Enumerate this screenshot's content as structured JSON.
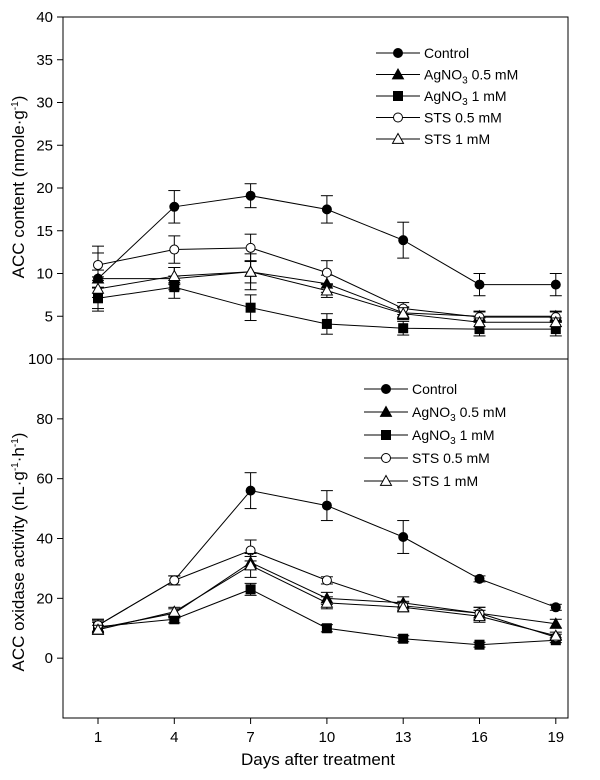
{
  "chart_data": [
    {
      "type": "line",
      "panel": "top",
      "ylabel": "ACC content (nmole·g-1)",
      "ylabel_parts": {
        "main": "ACC content (nmole·g",
        "sup": "-1",
        "end": ")"
      },
      "ylim": [
        0,
        40
      ],
      "yticks": [
        5,
        10,
        15,
        20,
        25,
        30,
        35,
        40
      ],
      "xlim": [
        1,
        19
      ],
      "grid": false,
      "legend_position": "top-right",
      "series": [
        {
          "name": "Control",
          "marker": "filled-circle",
          "x": [
            1,
            4,
            7,
            10,
            13,
            16,
            19
          ],
          "values": [
            9.4,
            17.8,
            19.1,
            17.5,
            13.9,
            8.7,
            8.7
          ],
          "err": [
            3.8,
            1.9,
            1.4,
            1.6,
            2.1,
            1.3,
            1.3
          ]
        },
        {
          "name": "AgNO3 0.5 mM",
          "name_parts": {
            "main": "AgNO",
            "sub": "3",
            "end": " 0.5 mM"
          },
          "marker": "filled-triangle",
          "x": [
            1,
            4,
            7,
            10,
            13,
            16,
            19
          ],
          "values": [
            9.4,
            9.4,
            10.2,
            8.8,
            5.4,
            5.0,
            5.0
          ],
          "err": [
            1.0,
            1.3,
            1.3,
            1.0,
            0.7,
            0.6,
            0.6
          ]
        },
        {
          "name": "AgNO3 1 mM",
          "name_parts": {
            "main": "AgNO",
            "sub": "3",
            "end": " 1 mM"
          },
          "marker": "filled-square",
          "x": [
            1,
            4,
            7,
            10,
            13,
            16,
            19
          ],
          "values": [
            7.1,
            8.4,
            6.0,
            4.1,
            3.6,
            3.5,
            3.5
          ],
          "err": [
            1.2,
            1.3,
            1.5,
            1.2,
            0.8,
            0.8,
            0.8
          ]
        },
        {
          "name": "STS 0.5 mM",
          "marker": "open-circle",
          "x": [
            1,
            4,
            7,
            10,
            13,
            16,
            19
          ],
          "values": [
            11.0,
            12.8,
            13.0,
            10.1,
            5.9,
            4.9,
            4.9
          ],
          "err": [
            1.4,
            1.6,
            1.6,
            1.4,
            0.7,
            0.6,
            0.6
          ]
        },
        {
          "name": "STS 1 mM",
          "marker": "open-triangle",
          "x": [
            1,
            4,
            7,
            10,
            13,
            16,
            19
          ],
          "values": [
            8.2,
            9.7,
            10.2,
            8.0,
            5.3,
            4.3,
            4.3
          ],
          "err": [
            1.0,
            1.0,
            2.1,
            0.8,
            0.7,
            0.5,
            0.5
          ]
        }
      ]
    },
    {
      "type": "line",
      "panel": "bottom",
      "ylabel": "ACC oxidase activity (nL·g-1·h-1)",
      "ylabel_parts": {
        "main": "ACC oxidase activity (nL·g",
        "sup1": "-1",
        "mid": "·h",
        "sup2": "-1",
        "end": ")"
      },
      "xlabel": "Days after treatment",
      "xticks": [
        1,
        4,
        7,
        10,
        13,
        16,
        19
      ],
      "ylim": [
        -20,
        100
      ],
      "yticks": [
        0,
        20,
        40,
        60,
        80,
        100
      ],
      "xlim": [
        1,
        19
      ],
      "grid": false,
      "legend_position": "top-right",
      "series": [
        {
          "name": "Control",
          "marker": "filled-circle",
          "x": [
            1,
            4,
            7,
            10,
            13,
            16,
            19
          ],
          "values": [
            11,
            26,
            56,
            51,
            40.5,
            26.5,
            17
          ],
          "err": [
            2,
            1.5,
            6,
            5,
            5.5,
            1,
            1
          ]
        },
        {
          "name": "AgNO3 0.5 mM",
          "name_parts": {
            "main": "AgNO",
            "sub": "3",
            "end": " 0.5 mM"
          },
          "marker": "filled-triangle",
          "x": [
            1,
            4,
            7,
            10,
            13,
            16,
            19
          ],
          "values": [
            10,
            15,
            32,
            20,
            18.5,
            15,
            11.5
          ],
          "err": [
            2,
            1.5,
            2,
            2,
            2,
            2,
            1.5
          ]
        },
        {
          "name": "AgNO3 1 mM",
          "name_parts": {
            "main": "AgNO",
            "sub": "3",
            "end": " 1 mM"
          },
          "marker": "filled-square",
          "x": [
            1,
            4,
            7,
            10,
            13,
            16,
            19
          ],
          "values": [
            10.5,
            13,
            23,
            10,
            6.5,
            4.5,
            6
          ],
          "err": [
            2,
            1.2,
            2,
            1.2,
            1,
            0.8,
            0.8
          ]
        },
        {
          "name": "STS 0.5 mM",
          "marker": "open-circle",
          "x": [
            1,
            4,
            7,
            10,
            13,
            16,
            19
          ],
          "values": [
            11,
            26,
            36,
            26,
            17.5,
            15,
            7
          ],
          "err": [
            2,
            1.5,
            3.5,
            1.2,
            1.5,
            2,
            1
          ]
        },
        {
          "name": "STS 1 mM",
          "marker": "open-triangle",
          "x": [
            1,
            4,
            7,
            10,
            13,
            16,
            19
          ],
          "values": [
            9.5,
            15.5,
            31,
            18.5,
            17,
            14,
            7.5
          ],
          "err": [
            1.5,
            1.5,
            4,
            2,
            1.5,
            2,
            1.2
          ]
        }
      ]
    }
  ]
}
